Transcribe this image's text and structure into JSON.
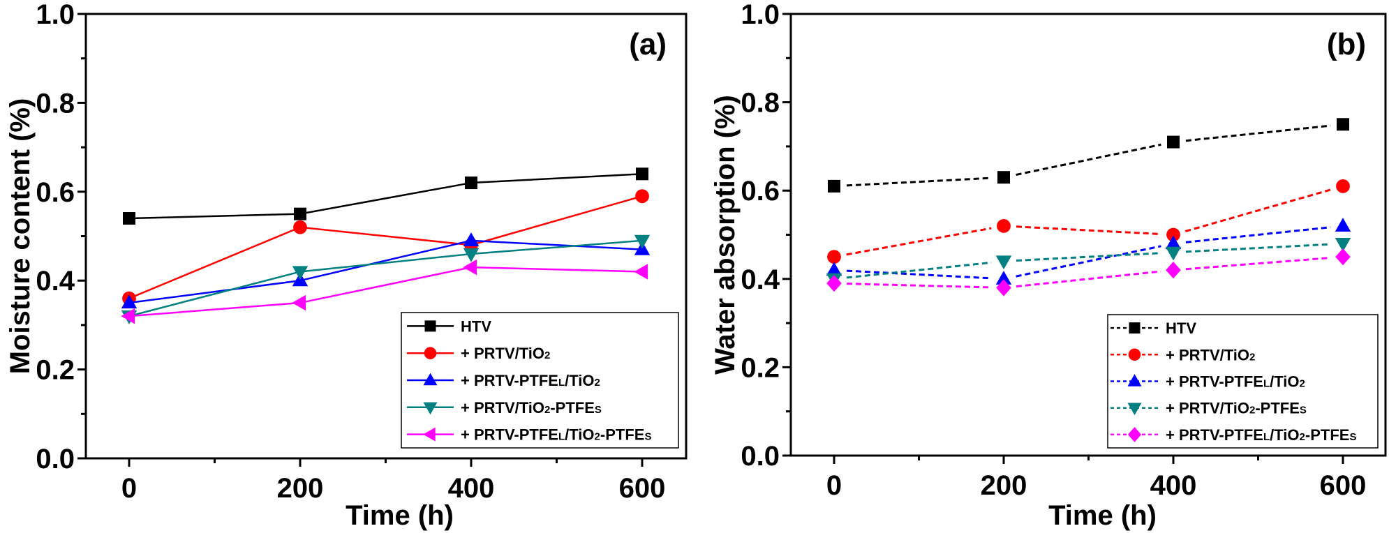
{
  "chart_data": [
    {
      "type": "line",
      "panel": "(a)",
      "title": "",
      "xlabel": "Time (h)",
      "ylabel": "Moisture content (%)",
      "x": [
        0,
        200,
        400,
        600
      ],
      "xlim": [
        -50,
        650
      ],
      "ylim": [
        0.0,
        1.0
      ],
      "xticks": [
        "0",
        "200",
        "400",
        "600"
      ],
      "yticks": [
        "0.0",
        "0.2",
        "0.4",
        "0.6",
        "0.8",
        "1.0"
      ],
      "grid": false,
      "line_style": "solid",
      "legend_position": "bottom-right",
      "series": [
        {
          "name": "HTV",
          "label_main": "HTV",
          "label_parts": [
            [
              "HTV",
              ""
            ]
          ],
          "marker": "square",
          "color": "#000000",
          "values": [
            0.54,
            0.55,
            0.62,
            0.64
          ]
        },
        {
          "name": "+ PRTV/TiO2",
          "label_parts": [
            [
              "+ PRTV/TiO",
              ""
            ],
            [
              "2",
              "sub"
            ]
          ],
          "marker": "circle",
          "color": "#ff0000",
          "values": [
            0.36,
            0.52,
            0.48,
            0.59
          ]
        },
        {
          "name": "+ PRTV-PTFEL/TiO2",
          "label_parts": [
            [
              "+ PRTV-PTFE",
              ""
            ],
            [
              "L",
              "sub"
            ],
            [
              "/TiO",
              ""
            ],
            [
              "2",
              "sub"
            ]
          ],
          "marker": "triangle-up",
          "color": "#0000ff",
          "values": [
            0.35,
            0.4,
            0.49,
            0.47
          ]
        },
        {
          "name": "+ PRTV/TiO2-PTFES",
          "label_parts": [
            [
              "+ PRTV/TiO",
              ""
            ],
            [
              "2",
              "sub"
            ],
            [
              "-PTFE",
              ""
            ],
            [
              "S",
              "sub"
            ]
          ],
          "marker": "triangle-down",
          "color": "#008080",
          "values": [
            0.32,
            0.42,
            0.46,
            0.49
          ]
        },
        {
          "name": "+ PRTV-PTFEL/TiO2-PTFES",
          "label_parts": [
            [
              "+ PRTV-PTFE",
              ""
            ],
            [
              "L",
              "sub"
            ],
            [
              "/TiO",
              ""
            ],
            [
              "2",
              "sub"
            ],
            [
              "-PTFE",
              ""
            ],
            [
              "S",
              "sub"
            ]
          ],
          "marker": "triangle-left",
          "color": "#ff00ff",
          "values": [
            0.32,
            0.35,
            0.43,
            0.42
          ]
        }
      ]
    },
    {
      "type": "line",
      "panel": "(b)",
      "title": "",
      "xlabel": "Time (h)",
      "ylabel": "Water absorption (%)",
      "x": [
        0,
        200,
        400,
        600
      ],
      "xlim": [
        -50,
        650
      ],
      "ylim": [
        0.0,
        1.0
      ],
      "xticks": [
        "0",
        "200",
        "400",
        "600"
      ],
      "yticks": [
        "0.0",
        "0.2",
        "0.4",
        "0.6",
        "0.8",
        "1.0"
      ],
      "grid": false,
      "line_style": "dashed",
      "legend_position": "bottom-right",
      "series": [
        {
          "name": "HTV",
          "label_parts": [
            [
              "HTV",
              ""
            ]
          ],
          "marker": "square",
          "color": "#000000",
          "values": [
            0.61,
            0.63,
            0.71,
            0.75
          ]
        },
        {
          "name": "+ PRTV/TiO2",
          "label_parts": [
            [
              "+ PRTV/TiO",
              ""
            ],
            [
              "2",
              "sub"
            ]
          ],
          "marker": "circle",
          "color": "#ff0000",
          "values": [
            0.45,
            0.52,
            0.5,
            0.61
          ]
        },
        {
          "name": "+ PRTV-PTFEL/TiO2",
          "label_parts": [
            [
              "+ PRTV-PTFE",
              ""
            ],
            [
              "L",
              "sub"
            ],
            [
              "/TiO",
              ""
            ],
            [
              "2",
              "sub"
            ]
          ],
          "marker": "triangle-up",
          "color": "#0000ff",
          "values": [
            0.42,
            0.4,
            0.48,
            0.52
          ]
        },
        {
          "name": "+ PRTV/TiO2-PTFES",
          "label_parts": [
            [
              "+ PRTV/TiO",
              ""
            ],
            [
              "2",
              "sub"
            ],
            [
              "-PTFE",
              ""
            ],
            [
              "S",
              "sub"
            ]
          ],
          "marker": "triangle-down",
          "color": "#008080",
          "values": [
            0.4,
            0.44,
            0.46,
            0.48
          ]
        },
        {
          "name": "+ PRTV-PTFEL/TiO2-PTFES",
          "label_parts": [
            [
              "+ PRTV-PTFE",
              ""
            ],
            [
              "L",
              "sub"
            ],
            [
              "/TiO",
              ""
            ],
            [
              "2",
              "sub"
            ],
            [
              "-PTFE",
              ""
            ],
            [
              "S",
              "sub"
            ]
          ],
          "marker": "diamond",
          "color": "#ff00ff",
          "values": [
            0.39,
            0.38,
            0.42,
            0.45
          ]
        }
      ]
    }
  ]
}
